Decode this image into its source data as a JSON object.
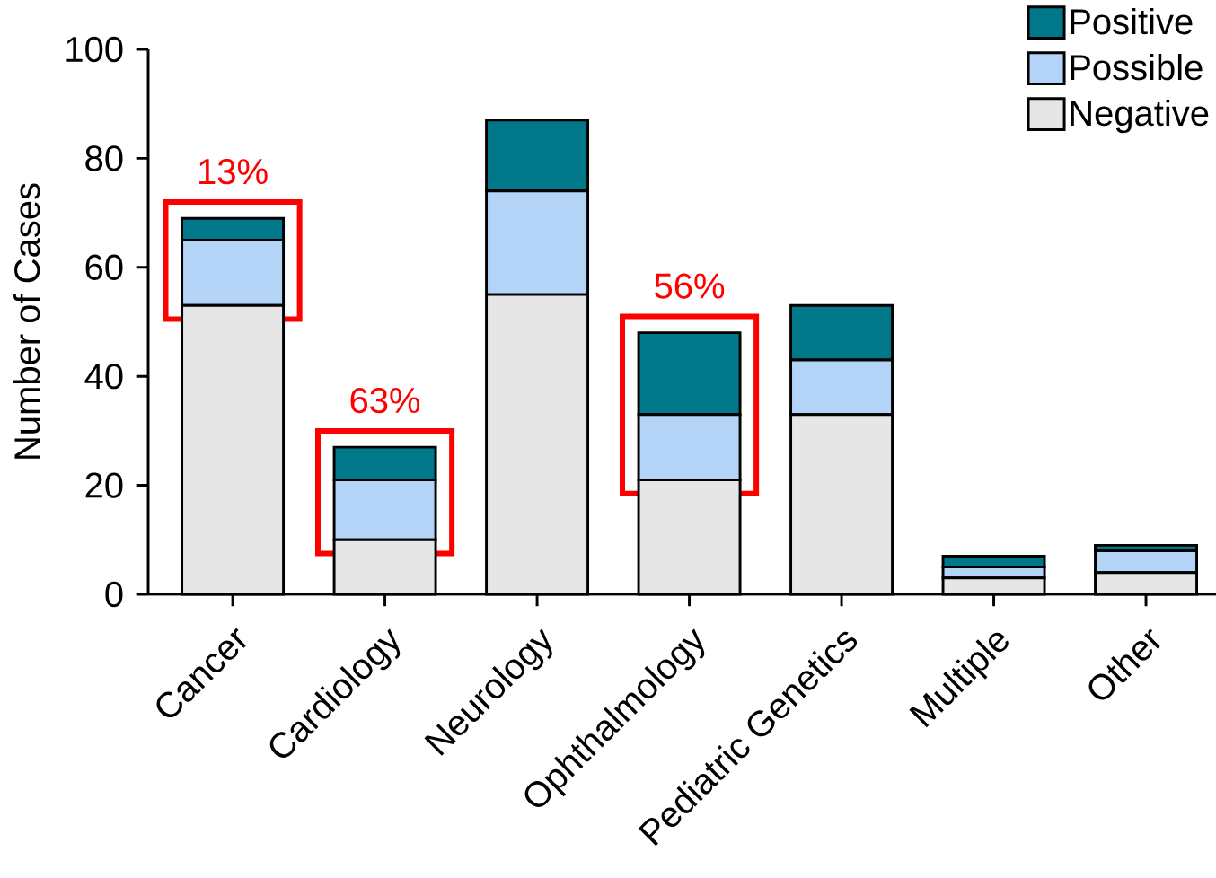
{
  "chart_data": {
    "type": "bar",
    "stacked": true,
    "ylabel": "Number of Cases",
    "categories": [
      "Cancer",
      "Cardiology",
      "Neurology",
      "Ophthalmology",
      "Pediatric Genetics",
      "Multiple",
      "Other"
    ],
    "series": [
      {
        "name": "Negative",
        "color": "#e6e6e6",
        "values": [
          53,
          10,
          55,
          21,
          33,
          3,
          4
        ]
      },
      {
        "name": "Possible",
        "color": "#b3d4f7",
        "values": [
          12,
          11,
          19,
          12,
          10,
          2,
          4
        ]
      },
      {
        "name": "Positive",
        "color": "#00788a",
        "values": [
          4,
          6,
          13,
          15,
          10,
          2,
          1
        ]
      }
    ],
    "ylim": [
      0,
      100
    ],
    "yticks": [
      0,
      20,
      40,
      60,
      80,
      100
    ],
    "grid": false,
    "legend": "top right",
    "annotations": [
      {
        "text": "13%",
        "x": "Cancer",
        "y": 69
      },
      {
        "text": "63%",
        "x": "Cardiology",
        "y": 27
      },
      {
        "text": "56%",
        "x": "Ophthalmology",
        "y": 48
      }
    ]
  }
}
